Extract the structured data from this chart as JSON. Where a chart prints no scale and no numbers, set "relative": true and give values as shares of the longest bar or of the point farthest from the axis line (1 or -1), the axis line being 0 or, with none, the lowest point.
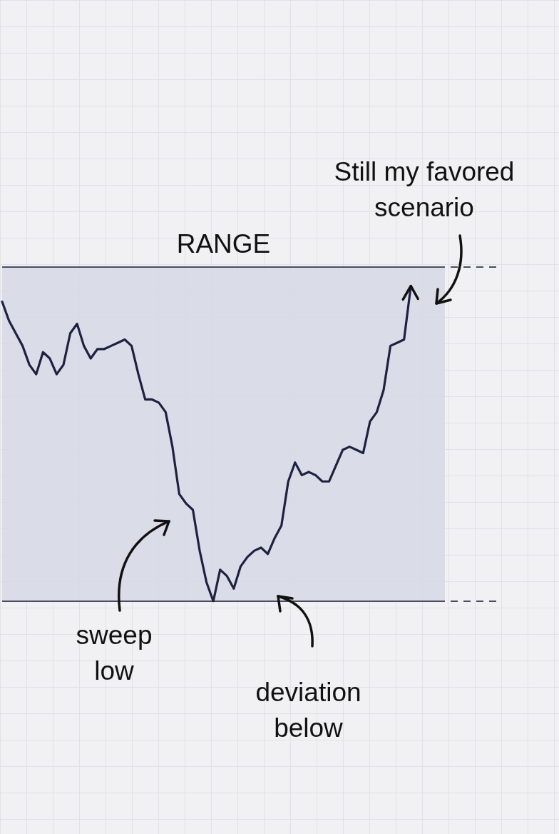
{
  "chart_data": {
    "type": "line",
    "relative": true,
    "marker": "none",
    "line_style": "solid",
    "grid": false,
    "categories": [
      null,
      null,
      null,
      null,
      null,
      null,
      null,
      null,
      null,
      null,
      null,
      null,
      null,
      null,
      null,
      null,
      null,
      null,
      null,
      null,
      null,
      null,
      null,
      null,
      null,
      null,
      null,
      null,
      null,
      null,
      null,
      null,
      null,
      null,
      null,
      null,
      null,
      null,
      null,
      null,
      null,
      null,
      null,
      null,
      null,
      null,
      null,
      null,
      null,
      null,
      null,
      null,
      null,
      null,
      null,
      null,
      null,
      null,
      null,
      null,
      null,
      null,
      null,
      null,
      null,
      null
    ],
    "series": [
      {
        "color": "#1e2240",
        "values": [
          0.95,
          0.89,
          0.85,
          0.81,
          0.75,
          0.72,
          0.79,
          0.77,
          0.72,
          0.75,
          0.85,
          0.88,
          0.81,
          0.77,
          0.8,
          0.8,
          0.81,
          0.82,
          0.83,
          0.81,
          0.72,
          0.64,
          0.64,
          0.63,
          0.6,
          0.49,
          0.34,
          0.31,
          0.29,
          0.16,
          0.06,
          0,
          0.1,
          0.08,
          0.04,
          0.11,
          0.14,
          0.16,
          0.17,
          0.15,
          0.2,
          0.24,
          0.38,
          0.44,
          0.4,
          0.41,
          0.4,
          0.38,
          0.38,
          0.43,
          0.48,
          0.49,
          0.48,
          0.47,
          0.57,
          0.6,
          0.67,
          0.81,
          0.82,
          0.83,
          1,
          null,
          null,
          null,
          null,
          null
        ]
      }
    ],
    "bands": [
      {
        "axis": "y",
        "from": 0,
        "to": 1.06,
        "color": "#d6d8e4"
      }
    ],
    "ref_lines": [
      {
        "axis": "y",
        "value": 0,
        "color": "#4a4d63",
        "line_style": "solid"
      },
      {
        "axis": "y",
        "value": 1.06,
        "label": "RANGE",
        "color": "#4a4d63",
        "line_style": "solid"
      }
    ],
    "annotations": [
      "Still my favored scenario",
      "sweep low",
      "deviation below"
    ]
  }
}
